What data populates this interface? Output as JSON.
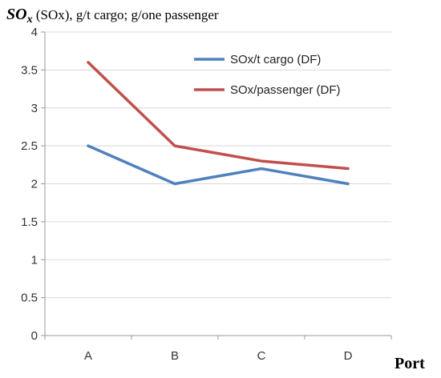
{
  "chart_data": {
    "type": "line",
    "title_symbol": "SO",
    "title_subscript": "x",
    "title_rest": " (SOx), g/t cargo; g/one passenger",
    "xlabel": "Port",
    "ylabel": "",
    "categories": [
      "A",
      "B",
      "C",
      "D"
    ],
    "ylim": [
      0,
      4
    ],
    "yticks": [
      0,
      0.5,
      1,
      1.5,
      2,
      2.5,
      3,
      3.5,
      4
    ],
    "grid": "horizontal",
    "legend_position": "top-right",
    "series": [
      {
        "name": "SOx/t cargo (DF)",
        "color": "#4F81BD",
        "values": [
          2.5,
          2.0,
          2.2,
          2.0
        ]
      },
      {
        "name": "SOx/passenger (DF)",
        "color": "#C0504D",
        "values": [
          3.6,
          2.5,
          2.3,
          2.2
        ]
      }
    ]
  }
}
